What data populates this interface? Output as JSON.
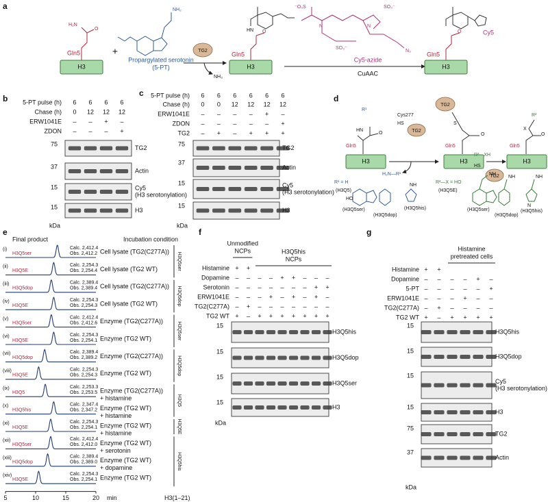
{
  "a": {
    "label": "a",
    "gln5": "Gln5",
    "h3": "H3",
    "plus": "+",
    "pt_label": [
      "Propargylated serotonin",
      "(5-PT)"
    ],
    "tg2": "TG2",
    "nh3": "NH₃",
    "cy5_azide": "Cy5-azide",
    "cuaac": "CuAAC",
    "cy5": "Cy5",
    "h2n": "H₂N",
    "o": "O",
    "nh2": "NH₂",
    "hn": "HN",
    "n": "N",
    "so3": "SO₃⁻",
    "o3s": "⁻O₃S",
    "n3": "N₃"
  },
  "b": {
    "label": "b",
    "conditions": [
      {
        "name": "5-PT pulse (h)",
        "lanes": [
          "6",
          "6",
          "6",
          "6"
        ]
      },
      {
        "name": "Chase (h)",
        "lanes": [
          "0",
          "12",
          "12",
          "12"
        ]
      },
      {
        "name": "ERW1041E",
        "lanes": [
          "–",
          "–",
          "+",
          "–"
        ]
      },
      {
        "name": "ZDON",
        "lanes": [
          "–",
          "–",
          "–",
          "+"
        ]
      }
    ],
    "blots": [
      {
        "marker": "75",
        "name": [
          "TG2"
        ]
      },
      {
        "marker": "37",
        "name": [
          "Actin"
        ]
      },
      {
        "marker": "15",
        "name": [
          "Cy5",
          "(H3 serotonylation)"
        ]
      },
      {
        "marker": "15",
        "name": [
          "H3"
        ]
      }
    ],
    "kda": "kDa"
  },
  "c": {
    "label": "c",
    "conditions": [
      {
        "name": "5-PT pulse (h)",
        "lanes": [
          "6",
          "6",
          "6",
          "6",
          "6",
          "6"
        ]
      },
      {
        "name": "Chase (h)",
        "lanes": [
          "0",
          "0",
          "12",
          "12",
          "12",
          "12"
        ]
      },
      {
        "name": "ERW1041E",
        "lanes": [
          "–",
          "–",
          "–",
          "–",
          "+",
          "–"
        ]
      },
      {
        "name": "ZDON",
        "lanes": [
          "–",
          "–",
          "–",
          "–",
          "–",
          "+"
        ]
      },
      {
        "name": "TG2",
        "lanes": [
          "–",
          "+",
          "–",
          "+",
          "+",
          "+"
        ]
      }
    ],
    "blots": [
      {
        "marker": "75",
        "name": [
          "TG2"
        ]
      },
      {
        "marker": "37",
        "name": [
          "Actin"
        ]
      },
      {
        "marker": "15",
        "name": [
          "Cy5",
          "(H3 serotonylation)"
        ]
      },
      {
        "marker": "15",
        "name": [
          "H3"
        ]
      }
    ],
    "kda": "kDa"
  },
  "d": {
    "label": "d",
    "gln5": "Gln5",
    "h3": "H3",
    "tg2": "TG2",
    "cys277": "Cys277",
    "hs": "HS",
    "s": "S",
    "r2xh": "R²—XH",
    "h2nr1": "H₂N—R¹",
    "r1": "R¹",
    "r2": "R²",
    "x": "X",
    "o": "O",
    "hn": "HN",
    "r1_def": "R¹ = H",
    "r2_def": "R²—X = HO",
    "h3q5": "(H3Q5)",
    "h3q5e": "(H3Q5E)",
    "products": [
      "(H3Q5ser)",
      "(H3Q5dop)",
      "(H3Q5his)"
    ],
    "ho": "HO",
    "nh": "NH",
    "n": "N"
  },
  "e": {
    "label": "e",
    "final_product": "Final product",
    "incubation": "Incubation condition",
    "xlim": [
      5,
      20
    ],
    "xticks": [
      5,
      10,
      15,
      20
    ],
    "x_unit": "min",
    "peptide": "H3(1–21)",
    "groups": [
      {
        "label": "H3Q5ser",
        "rows": [
          {
            "roman": "(i)",
            "product": "H3Q5ser",
            "calc": "Calc. 2,412.4",
            "obs": "Obs. 2,412.2",
            "condition": [
              "Cell lysate (TG2(C277A))"
            ],
            "peak": 13.6
          },
          {
            "roman": "(ii)",
            "product": "H3Q5E",
            "calc": "Calc. 2,254.3",
            "obs": "Obs. 2,254.4",
            "condition": [
              "Cell lysate (TG2 WT)"
            ],
            "peak": 13.0
          }
        ]
      },
      {
        "label": "H3Q5dop",
        "rows": [
          {
            "roman": "(iii)",
            "product": "H3Q5dop",
            "calc": "Calc. 2,389.4",
            "obs": "Obs. 2,389.4",
            "condition": [
              "Cell lysate (TG2(C277A))"
            ],
            "peak": 12.6
          },
          {
            "roman": "(iv)",
            "product": "H3Q5E",
            "calc": "Calc. 2,254.3",
            "obs": "Obs. 2,254.3",
            "condition": [
              "Cell lysate (TG2 WT)"
            ],
            "peak": 13.0
          }
        ]
      },
      {
        "label": "H3Q5ser",
        "rows": [
          {
            "roman": "(v)",
            "product": "H3Q5ser",
            "calc": "Calc. 2,412.4",
            "obs": "Obs. 2,412.6",
            "condition": [
              "Enzyme (TG2(C277A))"
            ],
            "peak": 12.6
          },
          {
            "roman": "(vi)",
            "product": "H3Q5E",
            "calc": "Calc. 2,254.3",
            "obs": "Obs. 2,254.1",
            "condition": [
              "Enzyme (TG2 WT)"
            ],
            "peak": 13.0
          }
        ]
      },
      {
        "label": "H3Q5dop",
        "rows": [
          {
            "roman": "(vii)",
            "product": "H3Q5dop",
            "calc": "Calc. 2,389.4",
            "obs": "Obs. 2,389.2",
            "condition": [
              "Enzyme (TG2(C277A))"
            ],
            "peak": 11.5
          },
          {
            "roman": "(viii)",
            "product": "H3Q5E",
            "calc": "Calc. 2,254.3",
            "obs": "Obs. 2,254.3",
            "condition": [
              "Enzyme (TG2 WT)"
            ],
            "peak": 10.5
          }
        ]
      },
      {
        "label": "H3Q5",
        "rows": [
          {
            "roman": "(ix)",
            "product": "H3Q5",
            "calc": "Calc. 2,253.3",
            "obs": "Obs. 2,253.5",
            "condition": [
              "Enzyme (TG2(C277A))",
              "+ histamine"
            ],
            "peak": 11.6
          },
          {
            "roman": "(x)",
            "product": "H3Q5his",
            "calc": "Calc. 2,347.4",
            "obs": "Obs. 2,347.2",
            "condition": [
              "Enzyme (TG2 WT)",
              "+ histamine"
            ],
            "peak": 13.0
          }
        ]
      },
      {
        "label": "H3Q5E",
        "rows": [
          {
            "roman": "(xi)",
            "product": "H3Q5E",
            "calc": "Calc. 2,254.3",
            "obs": "Obs. 2,254.1",
            "condition": [
              "Enzyme (TG2 WT)",
              "+ histamine"
            ],
            "peak": 12.5
          }
        ]
      },
      {
        "label": "H3Q5his",
        "rows": [
          {
            "roman": "(xii)",
            "product": "H3Q5ser",
            "calc": "Calc. 2,412.4",
            "obs": "Obs. 2,412.0",
            "condition": [
              "Enzyme (TG2 WT)",
              "+ serotonin"
            ],
            "peak": 12.5
          },
          {
            "roman": "(xiii)",
            "product": "H3Q5dop",
            "calc": "Calc. 2,389.4",
            "obs": "Obs. 2,389.0",
            "condition": [
              "Enzyme (TG2 WT)",
              "+ dopamine"
            ],
            "peak": 12.0
          },
          {
            "roman": "(xiv)",
            "product": "H3Q5E",
            "calc": "Calc. 2,254.3",
            "obs": "Obs. 2,254.1",
            "condition": [
              "Enzyme (TG2 WT)"
            ],
            "peak": 10.5
          }
        ]
      }
    ]
  },
  "f": {
    "label": "f",
    "headers": [
      [
        "Unmodified",
        "NCPs"
      ],
      [
        "H3Q5his",
        "NCPs"
      ]
    ],
    "conditions": [
      {
        "name": "Histamine",
        "lanes": [
          "+",
          "+",
          null,
          null,
          null,
          null,
          null,
          null,
          null
        ]
      },
      {
        "name": "Dopamine",
        "lanes": [
          "–",
          "–",
          "–",
          "–",
          "+",
          "+",
          "–",
          "–",
          "–"
        ]
      },
      {
        "name": "Serotonin",
        "lanes": [
          "–",
          "–",
          "–",
          "–",
          "–",
          "–",
          "–",
          "+",
          "+"
        ]
      },
      {
        "name": "ERW1041E",
        "lanes": [
          "–",
          "–",
          "–",
          "+",
          "–",
          "+",
          "–",
          "+",
          "–"
        ]
      },
      {
        "name": "TG2(C277A)",
        "lanes": [
          "–",
          "+",
          "–",
          "–",
          "–",
          "–",
          "–",
          "–",
          "–"
        ]
      },
      {
        "name": "TG2 WT",
        "lanes": [
          "+",
          "–",
          "+",
          "+",
          "+",
          "+",
          "+",
          "+",
          "+"
        ]
      }
    ],
    "blots": [
      {
        "marker": "15",
        "name": [
          "H3Q5his"
        ]
      },
      {
        "marker": "15",
        "name": [
          "H3Q5dop"
        ]
      },
      {
        "marker": "15",
        "name": [
          "H3Q5ser"
        ]
      },
      {
        "marker": "15",
        "name": [
          "H3"
        ]
      }
    ],
    "kda": "kDa"
  },
  "g": {
    "label": "g",
    "headers": [
      [
        "Histamine",
        "pretreated cells"
      ]
    ],
    "conditions": [
      {
        "name": "Histamine",
        "lanes": [
          "+",
          "+",
          null,
          null,
          null,
          null
        ]
      },
      {
        "name": "Dopamine",
        "lanes": [
          "–",
          "–",
          "–",
          "–",
          "+",
          "–"
        ]
      },
      {
        "name": "5-PT",
        "lanes": [
          "–",
          "–",
          "–",
          "–",
          "–",
          "+"
        ]
      },
      {
        "name": "ERW1041E",
        "lanes": [
          "–",
          "–",
          "–",
          "+",
          "–",
          "–"
        ]
      },
      {
        "name": "TG2(C277A)",
        "lanes": [
          "–",
          "+",
          "–",
          "–",
          "–",
          "–"
        ]
      },
      {
        "name": "TG2 WT",
        "lanes": [
          "+",
          "–",
          "+",
          "+",
          "+",
          "+"
        ]
      }
    ],
    "blots": [
      {
        "marker": "15",
        "name": [
          "H3Q5his"
        ]
      },
      {
        "marker": "15",
        "name": [
          "H3Q5dop"
        ]
      },
      {
        "marker": "15",
        "name": [
          "Cy5",
          "(H3 serotonylation)"
        ]
      },
      {
        "marker": "15",
        "name": [
          "H3"
        ]
      },
      {
        "marker": "75",
        "name": [
          "TG2"
        ]
      },
      {
        "marker": "37",
        "name": [
          "Actin"
        ]
      }
    ],
    "kda": "kDa"
  }
}
